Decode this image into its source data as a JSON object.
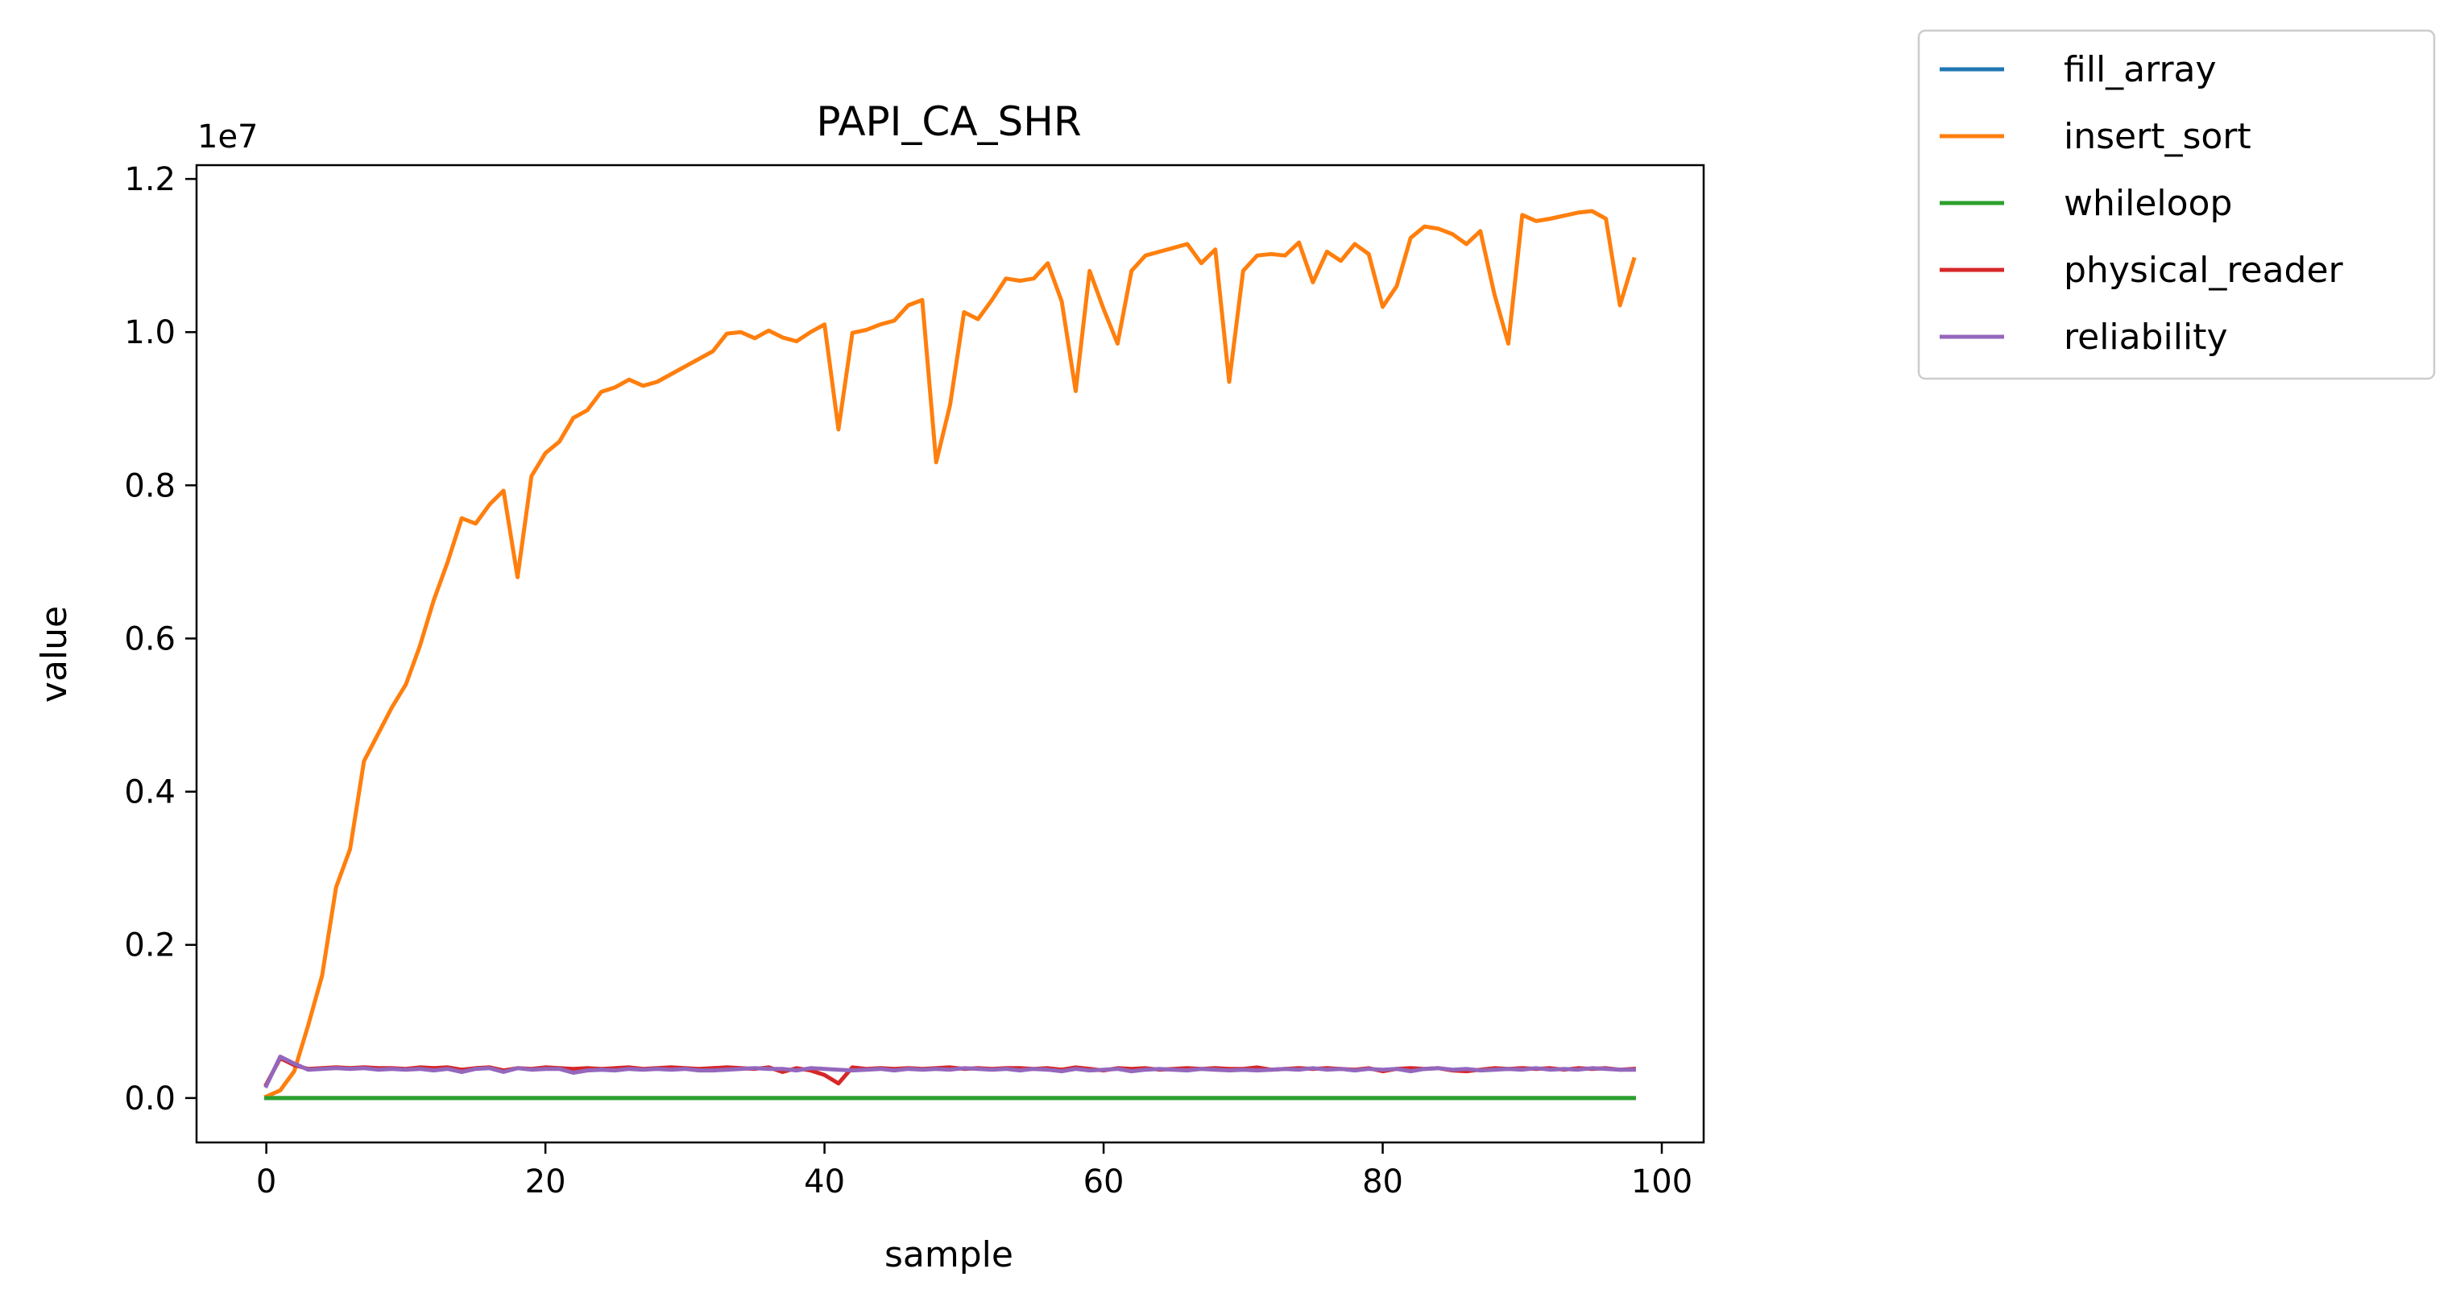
{
  "chart_data": {
    "type": "line",
    "title": "PAPI_CA_SHR",
    "xlabel": "sample",
    "ylabel": "value",
    "y_offset_label": "1e7",
    "xlim": [
      -5,
      103
    ],
    "ylim": [
      -0.058,
      1.218
    ],
    "x_ticks": [
      0,
      20,
      40,
      60,
      80,
      100
    ],
    "x_tick_labels": [
      "0",
      "20",
      "40",
      "60",
      "80",
      "100"
    ],
    "y_ticks": [
      0.0,
      0.2,
      0.4,
      0.6,
      0.8,
      1.0,
      1.2
    ],
    "y_tick_labels": [
      "0.0",
      "0.2",
      "0.4",
      "0.6",
      "0.8",
      "1.0",
      "1.2"
    ],
    "grid": false,
    "legend_placement": "outside-top-right",
    "series": [
      {
        "name": "fill_array",
        "color": "#1f77b4",
        "values": [
          0.0,
          0.0,
          0.0,
          0.0,
          0.0,
          0.0,
          0.0,
          0.0,
          0.0,
          0.0,
          0.0,
          0.0,
          0.0,
          0.0,
          0.0,
          0.0,
          0.0,
          0.0,
          0.0,
          0.0,
          0.0,
          0.0,
          0.0,
          0.0,
          0.0,
          0.0,
          0.0,
          0.0,
          0.0,
          0.0,
          0.0,
          0.0,
          0.0,
          0.0,
          0.0,
          0.0,
          0.0,
          0.0,
          0.0,
          0.0,
          0.0,
          0.0,
          0.0,
          0.0,
          0.0,
          0.0,
          0.0,
          0.0,
          0.0,
          0.0,
          0.0,
          0.0,
          0.0,
          0.0,
          0.0,
          0.0,
          0.0,
          0.0,
          0.0,
          0.0,
          0.0,
          0.0,
          0.0,
          0.0,
          0.0,
          0.0,
          0.0,
          0.0,
          0.0,
          0.0,
          0.0,
          0.0,
          0.0,
          0.0,
          0.0,
          0.0,
          0.0,
          0.0,
          0.0,
          0.0,
          0.0,
          0.0,
          0.0,
          0.0,
          0.0,
          0.0,
          0.0,
          0.0,
          0.0,
          0.0,
          0.0,
          0.0,
          0.0,
          0.0,
          0.0,
          0.0,
          0.0,
          0.0,
          0.0
        ]
      },
      {
        "name": "insert_sort",
        "color": "#ff7f0e",
        "values": [
          0.002,
          0.01,
          0.035,
          0.095,
          0.16,
          0.275,
          0.325,
          0.44,
          0.475,
          0.51,
          0.54,
          0.59,
          0.65,
          0.7,
          0.757,
          0.75,
          0.775,
          0.793,
          0.68,
          0.812,
          0.842,
          0.857,
          0.888,
          0.898,
          0.922,
          0.928,
          0.938,
          0.93,
          0.935,
          0.945,
          0.955,
          0.965,
          0.975,
          0.998,
          1.0,
          0.992,
          1.002,
          0.993,
          0.988,
          1.0,
          1.01,
          0.873,
          0.999,
          1.003,
          1.01,
          1.015,
          1.035,
          1.042,
          0.83,
          0.905,
          1.026,
          1.017,
          1.042,
          1.07,
          1.067,
          1.07,
          1.09,
          1.04,
          0.923,
          1.08,
          1.03,
          0.985,
          1.08,
          1.1,
          1.105,
          1.11,
          1.115,
          1.09,
          1.108,
          0.935,
          1.08,
          1.1,
          1.102,
          1.1,
          1.117,
          1.065,
          1.105,
          1.093,
          1.115,
          1.102,
          1.033,
          1.06,
          1.123,
          1.138,
          1.135,
          1.128,
          1.115,
          1.132,
          1.05,
          0.985,
          1.153,
          1.145,
          1.148,
          1.152,
          1.156,
          1.158,
          1.148,
          1.035,
          1.095
        ]
      },
      {
        "name": "whileloop",
        "color": "#2ca02c",
        "values": [
          0.0,
          0.0,
          0.0,
          0.0,
          0.0,
          0.0,
          0.0,
          0.0,
          0.0,
          0.0,
          0.0,
          0.0,
          0.0,
          0.0,
          0.0,
          0.0,
          0.0,
          0.0,
          0.0,
          0.0,
          0.0,
          0.0,
          0.0,
          0.0,
          0.0,
          0.0,
          0.0,
          0.0,
          0.0,
          0.0,
          0.0,
          0.0,
          0.0,
          0.0,
          0.0,
          0.0,
          0.0,
          0.0,
          0.0,
          0.0,
          0.0,
          0.0,
          0.0,
          0.0,
          0.0,
          0.0,
          0.0,
          0.0,
          0.0,
          0.0,
          0.0,
          0.0,
          0.0,
          0.0,
          0.0,
          0.0,
          0.0,
          0.0,
          0.0,
          0.0,
          0.0,
          0.0,
          0.0,
          0.0,
          0.0,
          0.0,
          0.0,
          0.0,
          0.0,
          0.0,
          0.0,
          0.0,
          0.0,
          0.0,
          0.0,
          0.0,
          0.0,
          0.0,
          0.0,
          0.0,
          0.0,
          0.0,
          0.0,
          0.0,
          0.0,
          0.0,
          0.0,
          0.0,
          0.0,
          0.0,
          0.0,
          0.0,
          0.0,
          0.0,
          0.0,
          0.0,
          0.0,
          0.0,
          0.0
        ]
      },
      {
        "name": "physical_reader",
        "color": "#d62728",
        "values": [
          0.018,
          0.052,
          0.043,
          0.038,
          0.039,
          0.04,
          0.039,
          0.04,
          0.039,
          0.039,
          0.038,
          0.04,
          0.039,
          0.04,
          0.037,
          0.039,
          0.04,
          0.036,
          0.039,
          0.038,
          0.04,
          0.039,
          0.038,
          0.039,
          0.038,
          0.039,
          0.04,
          0.038,
          0.039,
          0.04,
          0.039,
          0.038,
          0.039,
          0.04,
          0.039,
          0.038,
          0.04,
          0.034,
          0.039,
          0.036,
          0.03,
          0.019,
          0.04,
          0.038,
          0.039,
          0.038,
          0.039,
          0.038,
          0.039,
          0.04,
          0.038,
          0.039,
          0.038,
          0.039,
          0.039,
          0.038,
          0.039,
          0.037,
          0.04,
          0.038,
          0.036,
          0.039,
          0.038,
          0.039,
          0.037,
          0.038,
          0.039,
          0.038,
          0.039,
          0.038,
          0.038,
          0.04,
          0.037,
          0.038,
          0.039,
          0.038,
          0.039,
          0.038,
          0.037,
          0.039,
          0.035,
          0.038,
          0.039,
          0.038,
          0.039,
          0.036,
          0.035,
          0.037,
          0.039,
          0.038,
          0.039,
          0.038,
          0.039,
          0.037,
          0.039,
          0.038,
          0.039,
          0.037,
          0.038
        ]
      },
      {
        "name": "reliability",
        "color": "#9467bd",
        "values": [
          0.016,
          0.054,
          0.045,
          0.037,
          0.038,
          0.039,
          0.038,
          0.039,
          0.037,
          0.038,
          0.037,
          0.038,
          0.036,
          0.038,
          0.034,
          0.038,
          0.039,
          0.034,
          0.039,
          0.037,
          0.038,
          0.038,
          0.033,
          0.036,
          0.037,
          0.036,
          0.038,
          0.037,
          0.038,
          0.037,
          0.038,
          0.036,
          0.036,
          0.037,
          0.038,
          0.039,
          0.038,
          0.038,
          0.036,
          0.039,
          0.038,
          0.037,
          0.036,
          0.037,
          0.038,
          0.036,
          0.038,
          0.037,
          0.038,
          0.037,
          0.039,
          0.038,
          0.037,
          0.038,
          0.036,
          0.038,
          0.037,
          0.035,
          0.038,
          0.036,
          0.037,
          0.038,
          0.035,
          0.037,
          0.038,
          0.037,
          0.036,
          0.038,
          0.037,
          0.036,
          0.037,
          0.036,
          0.037,
          0.038,
          0.037,
          0.039,
          0.037,
          0.038,
          0.036,
          0.038,
          0.037,
          0.038,
          0.035,
          0.038,
          0.039,
          0.037,
          0.038,
          0.036,
          0.037,
          0.038,
          0.037,
          0.039,
          0.037,
          0.038,
          0.037,
          0.039,
          0.038,
          0.037,
          0.037
        ]
      }
    ]
  }
}
